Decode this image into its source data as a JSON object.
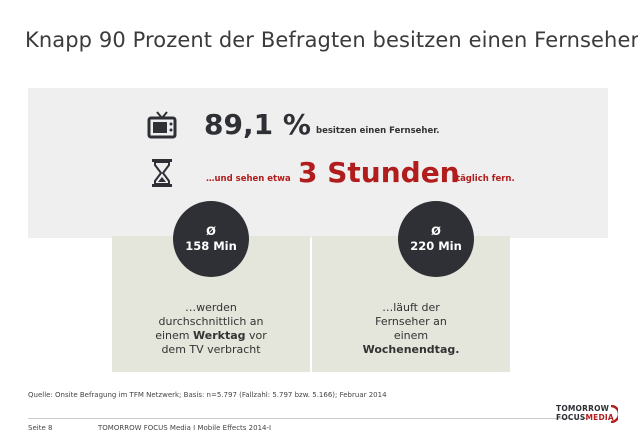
{
  "slide": {
    "title": "Knapp 90 Prozent der Befragten besitzen einen Fernseher"
  },
  "stats": {
    "tv_percent": "89,1 %",
    "tv_text": "besitzen einen Fernseher.",
    "watch_prefix": "…und sehen etwa",
    "watch_hours": "3 Stunden",
    "watch_suffix": "täglich fern."
  },
  "weekday": {
    "avg_symbol": "Ø",
    "minutes": "158 Min",
    "text_line1": "…werden",
    "text_line2": "durchschnittlich an",
    "text_line3_prefix": "einem ",
    "text_line3_bold": "Werktag",
    "text_line3_suffix": " vor",
    "text_line4": "dem TV verbracht"
  },
  "weekend": {
    "avg_symbol": "Ø",
    "minutes": "220 Min",
    "text_line1": "…läuft der",
    "text_line2": "Fernseher an",
    "text_line3": "einem",
    "text_line4_bold": "Wochenendtag."
  },
  "source": "Quelle: Onsite Befragung im TFM Netzwerk; Basis: n=5.797 (Fallzahl: 5.797 bzw. 5.166); Februar 2014",
  "footer": {
    "page": "Seite 8",
    "text": "TOMORROW FOCUS Media  I  Mobile Effects 2014-I"
  },
  "logo": {
    "line1": "TOMORROW",
    "line2_a": "FOCUS",
    "line2_b": "MEDIA"
  },
  "colors": {
    "accent_red": "#b11c1c",
    "dark": "#2f3035",
    "band_gray": "#efefef",
    "panel_green": "#e4e5db"
  },
  "icons": {
    "tv": "tv-icon",
    "hourglass": "hourglass-icon"
  }
}
